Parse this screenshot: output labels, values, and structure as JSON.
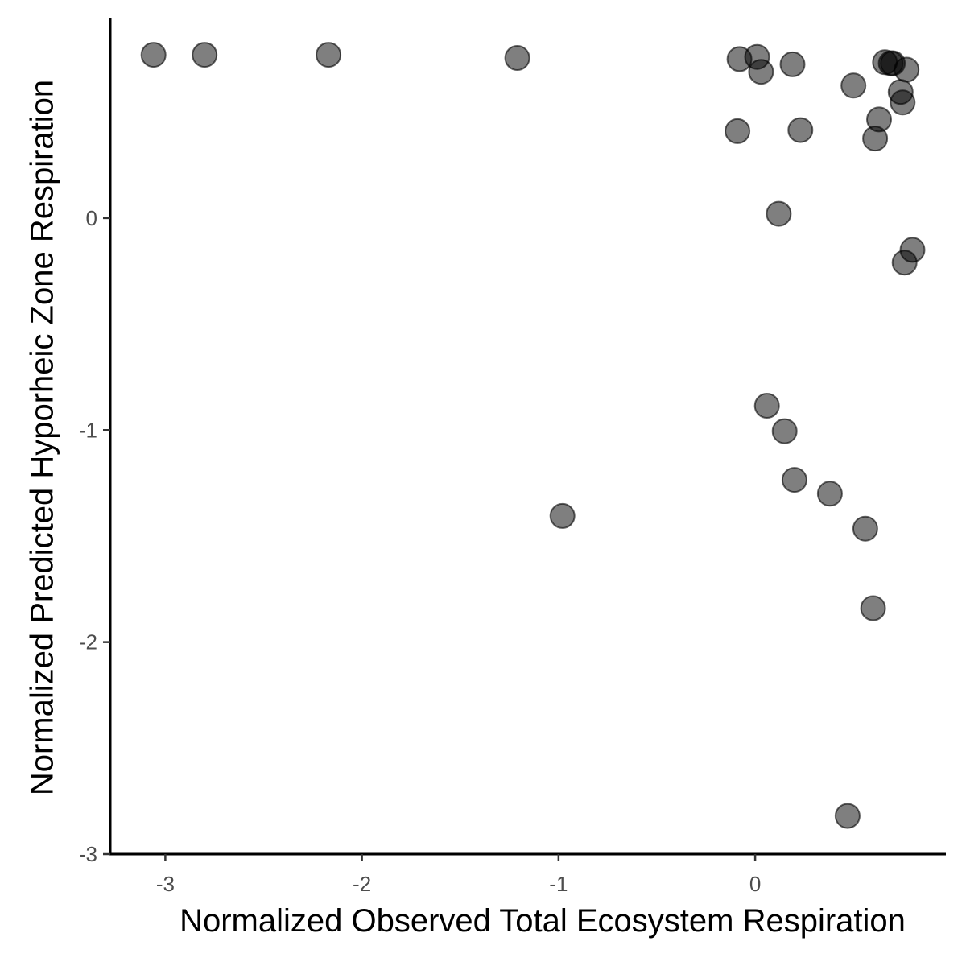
{
  "chart_data": {
    "type": "scatter",
    "title": "",
    "xlabel": "Normalized Observed Total Ecosystem Respiration",
    "ylabel": "Normalized Predicted Hyporheic Zone Respiration",
    "xlim": [
      -3.28,
      0.97
    ],
    "ylim": [
      -3.0,
      0.945
    ],
    "x_ticks": [
      -3,
      -2,
      -1,
      0
    ],
    "x_tick_labels": [
      "-3",
      "-2",
      "-1",
      "0"
    ],
    "y_ticks": [
      -3,
      -2,
      -1,
      0
    ],
    "y_tick_labels": [
      "-3",
      "-2",
      "-1",
      "0"
    ],
    "grid": false,
    "legend": "none",
    "point_color": "#000000",
    "point_opacity": 0.5,
    "points": [
      {
        "x": -3.06,
        "y": 0.77
      },
      {
        "x": -2.8,
        "y": 0.77
      },
      {
        "x": -2.17,
        "y": 0.77
      },
      {
        "x": -1.21,
        "y": 0.755
      },
      {
        "x": -0.08,
        "y": 0.75
      },
      {
        "x": 0.01,
        "y": 0.76
      },
      {
        "x": 0.03,
        "y": 0.69
      },
      {
        "x": 0.19,
        "y": 0.725
      },
      {
        "x": 0.5,
        "y": 0.625
      },
      {
        "x": 0.66,
        "y": 0.735
      },
      {
        "x": 0.69,
        "y": 0.73
      },
      {
        "x": 0.7,
        "y": 0.73
      },
      {
        "x": 0.77,
        "y": 0.7
      },
      {
        "x": 0.74,
        "y": 0.595
      },
      {
        "x": 0.75,
        "y": 0.545
      },
      {
        "x": 0.63,
        "y": 0.465
      },
      {
        "x": 0.61,
        "y": 0.375
      },
      {
        "x": -0.09,
        "y": 0.41
      },
      {
        "x": 0.23,
        "y": 0.415
      },
      {
        "x": 0.12,
        "y": 0.02
      },
      {
        "x": 0.8,
        "y": -0.15
      },
      {
        "x": 0.76,
        "y": -0.21
      },
      {
        "x": 0.06,
        "y": -0.885
      },
      {
        "x": 0.15,
        "y": -1.005
      },
      {
        "x": 0.2,
        "y": -1.235
      },
      {
        "x": 0.38,
        "y": -1.3
      },
      {
        "x": 0.56,
        "y": -1.465
      },
      {
        "x": 0.6,
        "y": -1.84
      },
      {
        "x": -0.98,
        "y": -1.405
      },
      {
        "x": 0.47,
        "y": -2.82
      }
    ]
  }
}
